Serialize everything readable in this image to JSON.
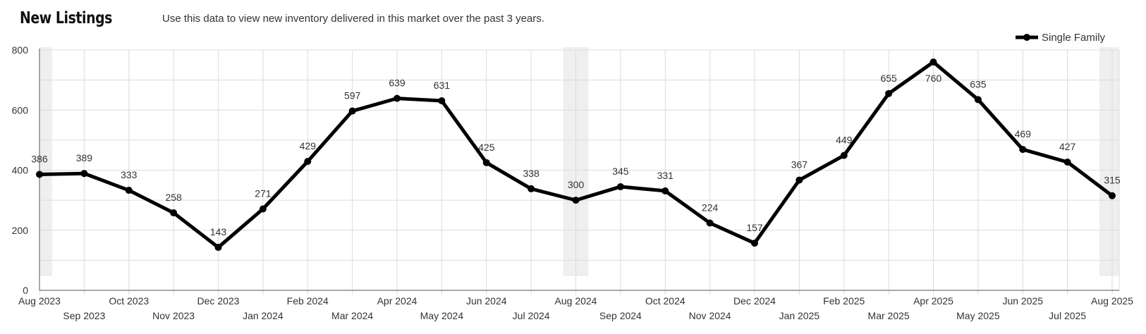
{
  "header": {
    "title": "New Listings",
    "subtitle": "Use this data to view new inventory delivered in this market over the past 3 years."
  },
  "colors": {
    "line": "#000000",
    "grid": "#dcdcdc",
    "highlight": "#efefef",
    "text": "#333333"
  },
  "chart_data": {
    "type": "line",
    "title": "New Listings",
    "xlabel": "",
    "ylabel": "",
    "ylim": [
      0,
      800
    ],
    "yticks": [
      0,
      200,
      400,
      600,
      800
    ],
    "grid": true,
    "legend_position": "top-right",
    "categories": [
      "Aug 2023",
      "Sep 2023",
      "Oct 2023",
      "Nov 2023",
      "Dec 2023",
      "Jan 2024",
      "Feb 2024",
      "Mar 2024",
      "Apr 2024",
      "May 2024",
      "Jun 2024",
      "Jul 2024",
      "Aug 2024",
      "Sep 2024",
      "Oct 2024",
      "Nov 2024",
      "Dec 2024",
      "Jan 2025",
      "Feb 2025",
      "Mar 2025",
      "Apr 2025",
      "May 2025",
      "Jun 2025",
      "Jul 2025",
      "Aug 2025"
    ],
    "highlighted_categories": [
      "Aug 2023",
      "Aug 2024",
      "Aug 2025"
    ],
    "series": [
      {
        "name": "Single Family",
        "values": [
          386,
          389,
          333,
          258,
          143,
          271,
          429,
          597,
          639,
          631,
          425,
          338,
          300,
          345,
          331,
          224,
          157,
          367,
          449,
          655,
          760,
          635,
          469,
          427,
          315
        ]
      }
    ]
  }
}
